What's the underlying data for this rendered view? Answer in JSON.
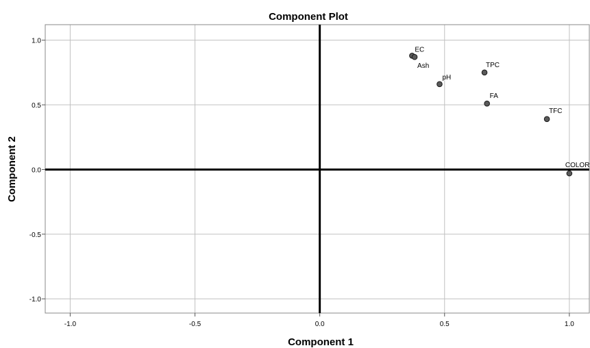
{
  "chart_data": {
    "type": "scatter",
    "title": "Component Plot",
    "xlabel": "Component 1",
    "ylabel": "Component 2",
    "xlim": [
      -1.1,
      1.08
    ],
    "ylim": [
      -1.11,
      1.12
    ],
    "xticks": [
      -1.0,
      -0.5,
      0.0,
      0.5,
      1.0
    ],
    "yticks": [
      -1.0,
      -0.5,
      0.0,
      0.5,
      1.0
    ],
    "xtick_labels": [
      "-1.0",
      "-0.5",
      "0.0",
      "0.5",
      "1.0"
    ],
    "ytick_labels": [
      "-1.0",
      "-0.5",
      "0.0",
      "0.5",
      "1.0"
    ],
    "grid": true,
    "points": [
      {
        "label": "EC",
        "x": 0.37,
        "y": 0.88
      },
      {
        "label": "Ash",
        "x": 0.38,
        "y": 0.87
      },
      {
        "label": "pH",
        "x": 0.48,
        "y": 0.66
      },
      {
        "label": "TPC",
        "x": 0.66,
        "y": 0.75
      },
      {
        "label": "FA",
        "x": 0.67,
        "y": 0.51
      },
      {
        "label": "TFC",
        "x": 0.91,
        "y": 0.39
      },
      {
        "label": "COLOR",
        "x": 1.0,
        "y": -0.03
      }
    ],
    "colors": {
      "point_fill": "#5a5a5a",
      "point_stroke": "#1a1a1a",
      "grid": "#c0c0c0",
      "zero_line": "#000000"
    }
  }
}
